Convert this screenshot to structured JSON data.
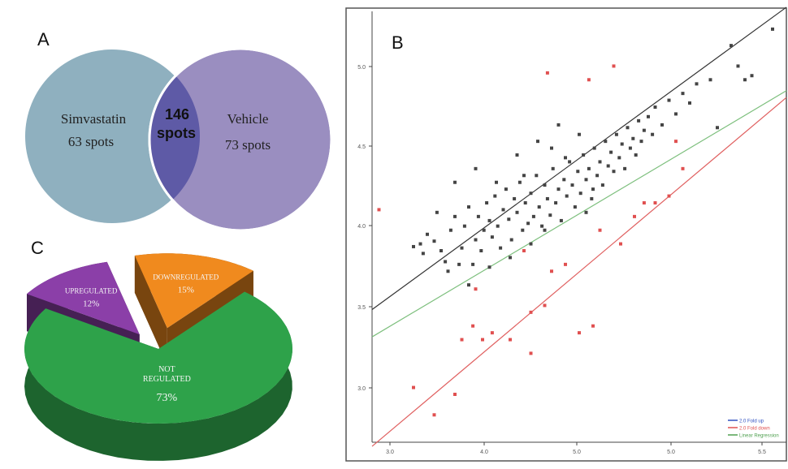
{
  "panels": {
    "a": {
      "letter": "A"
    },
    "b": {
      "letter": "B"
    },
    "c": {
      "letter": "C"
    }
  },
  "venn": {
    "left": {
      "name": "Simvastatin",
      "count": "63 spots",
      "color": "#8fb0bf"
    },
    "right": {
      "name": "Vehicle",
      "count": "73 spots",
      "color": "#9a8ec0"
    },
    "overlap": {
      "number": "146",
      "word": "spots",
      "color": "#5e5aa6"
    }
  },
  "chart_data": [
    {
      "type": "pie",
      "title": "",
      "slices": [
        {
          "label": "NOT REGULATED",
          "percent_text": "73%",
          "value": 73,
          "color": "#2ea24a"
        },
        {
          "label": "UPREGULATED",
          "percent_text": "12%",
          "value": 12,
          "color": "#8b3fa8"
        },
        {
          "label": "DOWNREGULATED",
          "percent_text": "15%",
          "value": 15,
          "color": "#f08a1e"
        }
      ],
      "exploded": true,
      "style": "3d"
    },
    {
      "type": "scatter",
      "title": "",
      "xlabel": "",
      "ylabel": "",
      "xlim": [
        2.85,
        5.85
      ],
      "ylim": [
        2.3,
        5.45
      ],
      "xticks": [
        "3.0",
        "4.0",
        "5.0",
        "5.0",
        "5.5"
      ],
      "yticks": [
        "5.0",
        "4.5",
        "4.0",
        "3.5",
        "3.0"
      ],
      "grid": false,
      "legend_placement": "bottom-right",
      "legend_entries": [
        "2.0 Fold up",
        "2.0 Fold down",
        "Linear Regression"
      ],
      "lines": [
        {
          "role": "upper",
          "color": "#333333",
          "points": [
            [
              2.85,
              3.27
            ],
            [
              5.85,
              5.48
            ]
          ]
        },
        {
          "role": "regression",
          "color": "#7dbf7d",
          "points": [
            [
              2.85,
              3.07
            ],
            [
              5.85,
              4.87
            ]
          ]
        },
        {
          "role": "lower",
          "color": "#e06060",
          "points": [
            [
              2.85,
              2.27
            ],
            [
              5.85,
              4.82
            ]
          ]
        }
      ],
      "series": [
        {
          "role": "unchanged",
          "color": "#444444",
          "points": [
            [
              3.15,
              3.73
            ],
            [
              3.2,
              3.75
            ],
            [
              3.22,
              3.68
            ],
            [
              3.25,
              3.82
            ],
            [
              3.3,
              3.77
            ],
            [
              3.32,
              3.98
            ],
            [
              3.35,
              3.7
            ],
            [
              3.38,
              3.62
            ],
            [
              3.4,
              3.55
            ],
            [
              3.42,
              3.85
            ],
            [
              3.45,
              3.95
            ],
            [
              3.48,
              3.6
            ],
            [
              3.5,
              3.72
            ],
            [
              3.52,
              3.88
            ],
            [
              3.55,
              4.02
            ],
            [
              3.58,
              3.6
            ],
            [
              3.6,
              3.78
            ],
            [
              3.62,
              3.95
            ],
            [
              3.64,
              3.7
            ],
            [
              3.66,
              3.85
            ],
            [
              3.68,
              4.05
            ],
            [
              3.7,
              3.92
            ],
            [
              3.72,
              3.8
            ],
            [
              3.74,
              4.1
            ],
            [
              3.76,
              3.88
            ],
            [
              3.78,
              3.72
            ],
            [
              3.8,
              4.0
            ],
            [
              3.82,
              4.15
            ],
            [
              3.84,
              3.93
            ],
            [
              3.86,
              3.78
            ],
            [
              3.88,
              4.08
            ],
            [
              3.9,
              3.98
            ],
            [
              3.92,
              4.2
            ],
            [
              3.94,
              3.85
            ],
            [
              3.96,
              4.05
            ],
            [
              3.98,
              3.9
            ],
            [
              4.0,
              4.12
            ],
            [
              4.02,
              3.95
            ],
            [
              4.04,
              4.25
            ],
            [
              4.06,
              4.02
            ],
            [
              4.08,
              3.88
            ],
            [
              4.1,
              4.18
            ],
            [
              4.12,
              4.08
            ],
            [
              4.14,
              3.96
            ],
            [
              4.16,
              4.3
            ],
            [
              4.18,
              4.05
            ],
            [
              4.2,
              4.15
            ],
            [
              4.22,
              3.92
            ],
            [
              4.24,
              4.22
            ],
            [
              4.26,
              4.1
            ],
            [
              4.28,
              4.35
            ],
            [
              4.3,
              4.18
            ],
            [
              4.32,
              4.02
            ],
            [
              4.34,
              4.28
            ],
            [
              4.36,
              4.12
            ],
            [
              4.38,
              4.4
            ],
            [
              4.4,
              4.22
            ],
            [
              4.42,
              4.3
            ],
            [
              4.44,
              4.08
            ],
            [
              4.46,
              4.45
            ],
            [
              4.48,
              4.25
            ],
            [
              4.5,
              4.35
            ],
            [
              4.52,
              4.18
            ],
            [
              4.54,
              4.5
            ],
            [
              4.56,
              4.32
            ],
            [
              4.58,
              4.42
            ],
            [
              4.6,
              4.28
            ],
            [
              4.62,
              4.55
            ],
            [
              4.64,
              4.38
            ],
            [
              4.66,
              4.48
            ],
            [
              4.68,
              4.3
            ],
            [
              4.7,
              4.6
            ],
            [
              4.72,
              4.45
            ],
            [
              4.74,
              4.52
            ],
            [
              4.76,
              4.4
            ],
            [
              4.78,
              4.65
            ],
            [
              4.8,
              4.5
            ],
            [
              4.82,
              4.58
            ],
            [
              4.85,
              4.68
            ],
            [
              4.88,
              4.55
            ],
            [
              4.9,
              4.75
            ],
            [
              4.95,
              4.62
            ],
            [
              5.0,
              4.8
            ],
            [
              5.05,
              4.7
            ],
            [
              5.1,
              4.85
            ],
            [
              5.15,
              4.78
            ],
            [
              5.2,
              4.92
            ],
            [
              5.3,
              4.95
            ],
            [
              5.35,
              4.6
            ],
            [
              5.45,
              5.2
            ],
            [
              5.5,
              5.05
            ],
            [
              5.55,
              4.95
            ],
            [
              5.6,
              4.98
            ],
            [
              5.75,
              5.32
            ],
            [
              5.85,
              5.45
            ],
            [
              3.6,
              4.3
            ],
            [
              3.75,
              4.2
            ],
            [
              3.9,
              4.4
            ],
            [
              4.05,
              4.5
            ],
            [
              4.2,
              4.62
            ],
            [
              3.45,
              4.2
            ],
            [
              4.35,
              4.55
            ],
            [
              4.15,
              4.45
            ],
            [
              3.95,
              4.25
            ],
            [
              4.25,
              4.38
            ],
            [
              4.45,
              4.15
            ],
            [
              3.7,
              3.58
            ],
            [
              3.85,
              3.65
            ],
            [
              4.0,
              3.75
            ],
            [
              4.1,
              3.85
            ],
            [
              3.55,
              3.45
            ],
            [
              4.4,
              3.98
            ]
          ]
        },
        {
          "role": "changed",
          "color": "#e05050",
          "points": [
            [
              2.9,
              4.0
            ],
            [
              3.15,
              2.7
            ],
            [
              3.3,
              2.5
            ],
            [
              3.45,
              2.65
            ],
            [
              3.5,
              3.05
            ],
            [
              3.58,
              3.15
            ],
            [
              3.65,
              3.05
            ],
            [
              3.72,
              3.1
            ],
            [
              3.85,
              3.05
            ],
            [
              3.95,
              3.7
            ],
            [
              4.0,
              3.25
            ],
            [
              4.1,
              3.3
            ],
            [
              4.15,
              3.55
            ],
            [
              4.25,
              3.6
            ],
            [
              4.35,
              3.1
            ],
            [
              4.5,
              3.85
            ],
            [
              4.65,
              3.75
            ],
            [
              4.75,
              3.95
            ],
            [
              4.82,
              4.05
            ],
            [
              4.9,
              4.05
            ],
            [
              5.0,
              4.1
            ],
            [
              5.1,
              4.3
            ],
            [
              4.12,
              5.0
            ],
            [
              4.42,
              4.95
            ],
            [
              4.6,
              5.05
            ],
            [
              3.6,
              3.42
            ],
            [
              4.0,
              2.95
            ],
            [
              4.45,
              3.15
            ],
            [
              5.05,
              4.5
            ]
          ]
        }
      ]
    }
  ]
}
